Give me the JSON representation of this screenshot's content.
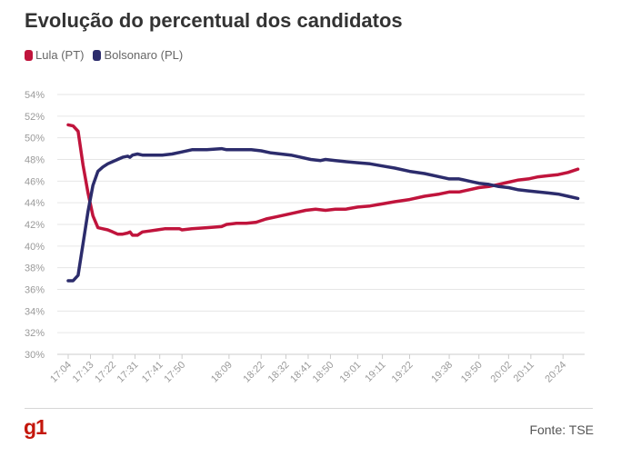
{
  "header": {
    "title": "Evolução do percentual dos candidatos"
  },
  "footer": {
    "logo_text": "g1",
    "source": "Fonte: TSE"
  },
  "colors": {
    "lula": "#c0143c",
    "bolsonaro": "#2c2c6c",
    "grid": "#e6e6e6",
    "axis": "#9a9a9a"
  },
  "chart_data": {
    "type": "line",
    "title": "Evolução do percentual dos candidatos",
    "xlabel": "",
    "ylabel": "",
    "ylim": [
      30,
      54
    ],
    "y_ticks": [
      "54%",
      "52%",
      "50%",
      "48%",
      "46%",
      "44%",
      "42%",
      "40%",
      "38%",
      "36%",
      "34%",
      "32%",
      "30%"
    ],
    "y_tick_values": [
      54,
      52,
      50,
      48,
      46,
      44,
      42,
      40,
      38,
      36,
      34,
      32,
      30
    ],
    "xlim": [
      1024,
      1232
    ],
    "x_ticks": [
      {
        "label": "17:04",
        "value": 1024
      },
      {
        "label": "17:13",
        "value": 1033
      },
      {
        "label": "17:22",
        "value": 1042
      },
      {
        "label": "17:31",
        "value": 1051
      },
      {
        "label": "17:41",
        "value": 1061
      },
      {
        "label": "17:50",
        "value": 1070
      },
      {
        "label": "18:09",
        "value": 1089
      },
      {
        "label": "18:22",
        "value": 1102
      },
      {
        "label": "18:32",
        "value": 1112
      },
      {
        "label": "18:41",
        "value": 1121
      },
      {
        "label": "18:50",
        "value": 1130
      },
      {
        "label": "19:01",
        "value": 1141
      },
      {
        "label": "19:11",
        "value": 1151
      },
      {
        "label": "19:22",
        "value": 1162
      },
      {
        "label": "19:38",
        "value": 1178
      },
      {
        "label": "19:50",
        "value": 1190
      },
      {
        "label": "20:02",
        "value": 1202
      },
      {
        "label": "20:11",
        "value": 1211
      },
      {
        "label": "20:24",
        "value": 1224
      }
    ],
    "legend_position": "top-left",
    "grid": true,
    "series": [
      {
        "name": "Lula (PT)",
        "color": "#c0143c",
        "points": [
          [
            1024,
            51.2
          ],
          [
            1026,
            51.1
          ],
          [
            1028,
            50.6
          ],
          [
            1030,
            47.5
          ],
          [
            1032,
            44.9
          ],
          [
            1034,
            42.8
          ],
          [
            1036,
            41.7
          ],
          [
            1038,
            41.6
          ],
          [
            1040,
            41.5
          ],
          [
            1042,
            41.3
          ],
          [
            1044,
            41.1
          ],
          [
            1046,
            41.1
          ],
          [
            1048,
            41.2
          ],
          [
            1049,
            41.3
          ],
          [
            1050,
            41.0
          ],
          [
            1052,
            41.0
          ],
          [
            1054,
            41.3
          ],
          [
            1057,
            41.4
          ],
          [
            1060,
            41.5
          ],
          [
            1063,
            41.6
          ],
          [
            1066,
            41.6
          ],
          [
            1069,
            41.6
          ],
          [
            1070,
            41.5
          ],
          [
            1074,
            41.6
          ],
          [
            1080,
            41.7
          ],
          [
            1086,
            41.8
          ],
          [
            1088,
            42.0
          ],
          [
            1092,
            42.1
          ],
          [
            1096,
            42.1
          ],
          [
            1100,
            42.2
          ],
          [
            1104,
            42.5
          ],
          [
            1108,
            42.7
          ],
          [
            1112,
            42.9
          ],
          [
            1116,
            43.1
          ],
          [
            1120,
            43.3
          ],
          [
            1124,
            43.4
          ],
          [
            1128,
            43.3
          ],
          [
            1132,
            43.4
          ],
          [
            1136,
            43.4
          ],
          [
            1141,
            43.6
          ],
          [
            1146,
            43.7
          ],
          [
            1151,
            43.9
          ],
          [
            1156,
            44.1
          ],
          [
            1162,
            44.3
          ],
          [
            1168,
            44.6
          ],
          [
            1174,
            44.8
          ],
          [
            1178,
            45.0
          ],
          [
            1182,
            45.0
          ],
          [
            1186,
            45.2
          ],
          [
            1190,
            45.4
          ],
          [
            1194,
            45.5
          ],
          [
            1198,
            45.7
          ],
          [
            1202,
            45.9
          ],
          [
            1206,
            46.1
          ],
          [
            1210,
            46.2
          ],
          [
            1214,
            46.4
          ],
          [
            1218,
            46.5
          ],
          [
            1222,
            46.6
          ],
          [
            1226,
            46.8
          ],
          [
            1230,
            47.1
          ]
        ]
      },
      {
        "name": "Bolsonaro (PL)",
        "color": "#2c2c6c",
        "points": [
          [
            1024,
            36.8
          ],
          [
            1026,
            36.8
          ],
          [
            1028,
            37.3
          ],
          [
            1030,
            40.2
          ],
          [
            1032,
            43.2
          ],
          [
            1034,
            45.6
          ],
          [
            1036,
            46.9
          ],
          [
            1038,
            47.3
          ],
          [
            1040,
            47.6
          ],
          [
            1042,
            47.8
          ],
          [
            1044,
            48.0
          ],
          [
            1046,
            48.2
          ],
          [
            1048,
            48.3
          ],
          [
            1049,
            48.2
          ],
          [
            1050,
            48.4
          ],
          [
            1052,
            48.5
          ],
          [
            1054,
            48.4
          ],
          [
            1058,
            48.4
          ],
          [
            1062,
            48.4
          ],
          [
            1066,
            48.5
          ],
          [
            1070,
            48.7
          ],
          [
            1074,
            48.9
          ],
          [
            1080,
            48.9
          ],
          [
            1086,
            49.0
          ],
          [
            1088,
            48.9
          ],
          [
            1092,
            48.9
          ],
          [
            1098,
            48.9
          ],
          [
            1102,
            48.8
          ],
          [
            1106,
            48.6
          ],
          [
            1110,
            48.5
          ],
          [
            1114,
            48.4
          ],
          [
            1118,
            48.2
          ],
          [
            1122,
            48.0
          ],
          [
            1126,
            47.9
          ],
          [
            1128,
            48.0
          ],
          [
            1132,
            47.9
          ],
          [
            1136,
            47.8
          ],
          [
            1141,
            47.7
          ],
          [
            1146,
            47.6
          ],
          [
            1151,
            47.4
          ],
          [
            1156,
            47.2
          ],
          [
            1162,
            46.9
          ],
          [
            1168,
            46.7
          ],
          [
            1174,
            46.4
          ],
          [
            1178,
            46.2
          ],
          [
            1182,
            46.2
          ],
          [
            1186,
            46.0
          ],
          [
            1190,
            45.8
          ],
          [
            1194,
            45.7
          ],
          [
            1198,
            45.5
          ],
          [
            1202,
            45.4
          ],
          [
            1206,
            45.2
          ],
          [
            1210,
            45.1
          ],
          [
            1214,
            45.0
          ],
          [
            1218,
            44.9
          ],
          [
            1222,
            44.8
          ],
          [
            1226,
            44.6
          ],
          [
            1230,
            44.4
          ]
        ]
      }
    ]
  }
}
